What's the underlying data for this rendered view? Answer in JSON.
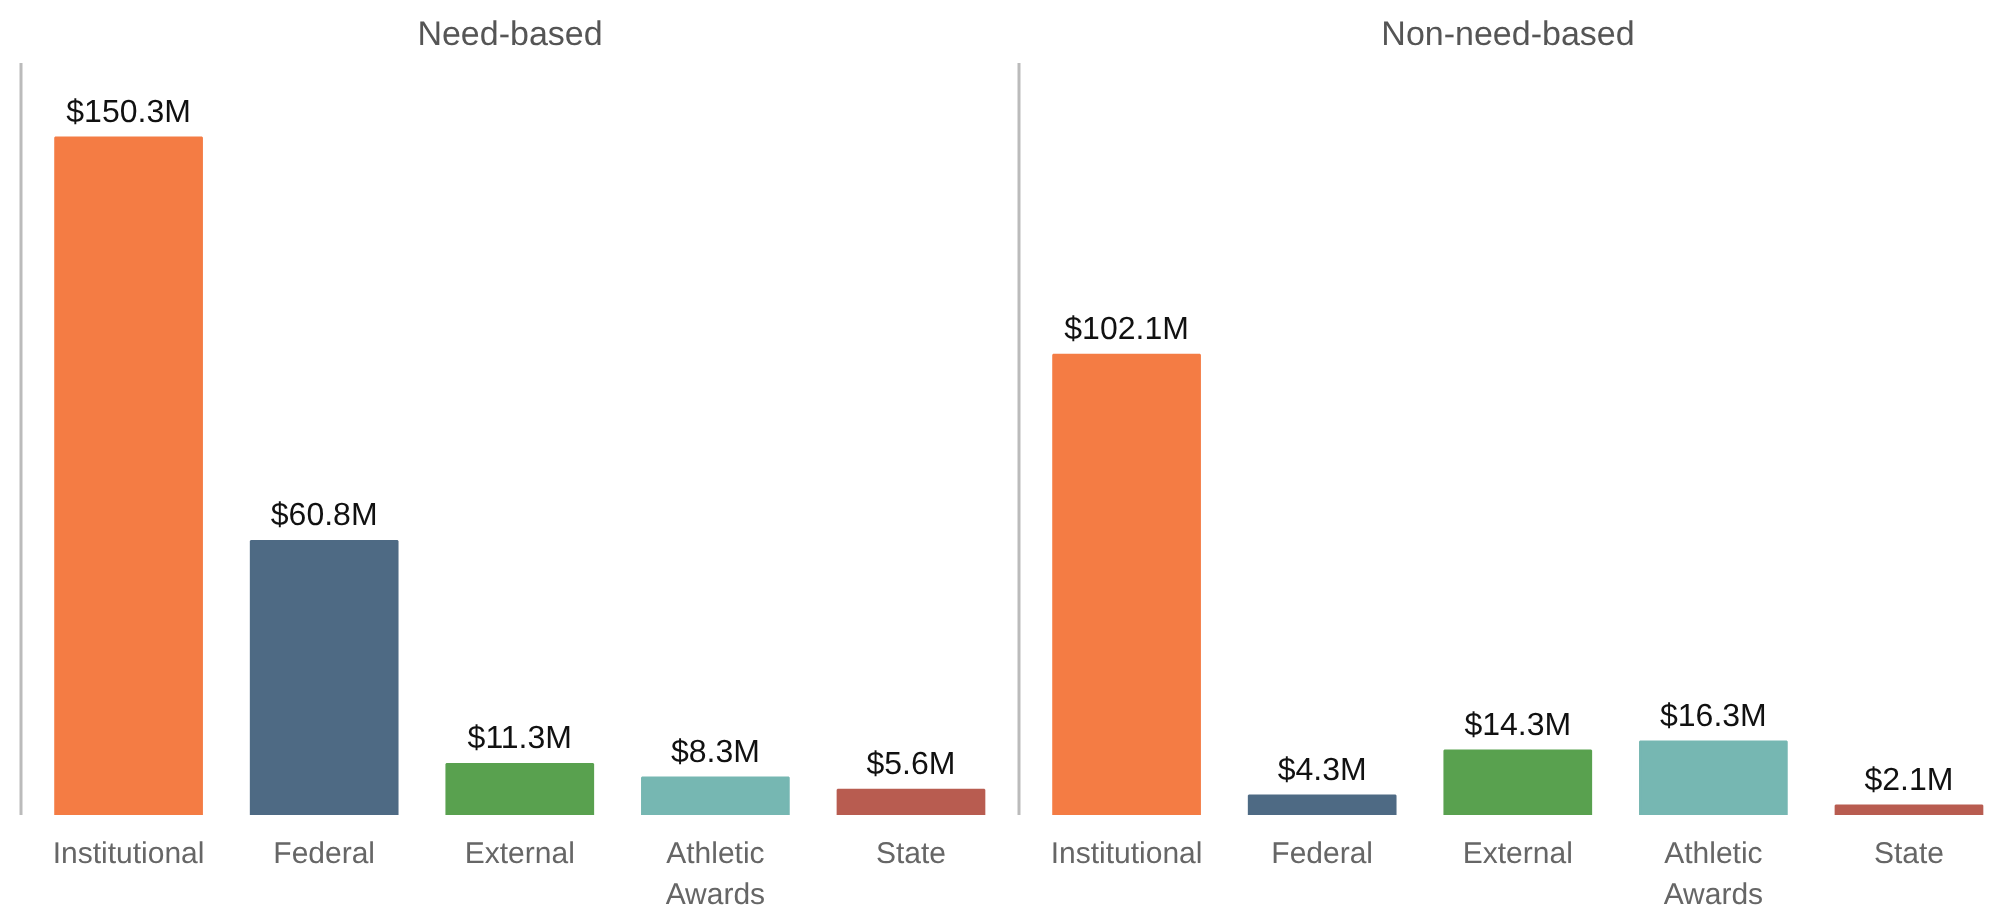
{
  "chart_data": [
    {
      "type": "bar",
      "title": "Need-based",
      "categories": [
        "Institutional",
        "Federal",
        "External",
        "Athletic Awards",
        "State"
      ],
      "values": [
        150.3,
        60.8,
        11.3,
        8.3,
        5.6
      ],
      "colors": [
        "#f47c44",
        "#4e6a84",
        "#59a14f",
        "#76b7b2",
        "#b85c50"
      ],
      "value_labels": [
        "$150.3M",
        "$60.8M",
        "$11.3M",
        "$8.3M",
        "$5.6M"
      ]
    },
    {
      "type": "bar",
      "title": "Non-need-based",
      "categories": [
        "Institutional",
        "Federal",
        "External",
        "Athletic Awards",
        "State"
      ],
      "values": [
        102.1,
        4.3,
        14.3,
        16.3,
        2.1
      ],
      "colors": [
        "#f47c44",
        "#4e6a84",
        "#59a14f",
        "#76b7b2",
        "#b85c50"
      ],
      "value_labels": [
        "$102.1M",
        "$4.3M",
        "$14.3M",
        "$16.3M",
        "$2.1M"
      ]
    }
  ]
}
